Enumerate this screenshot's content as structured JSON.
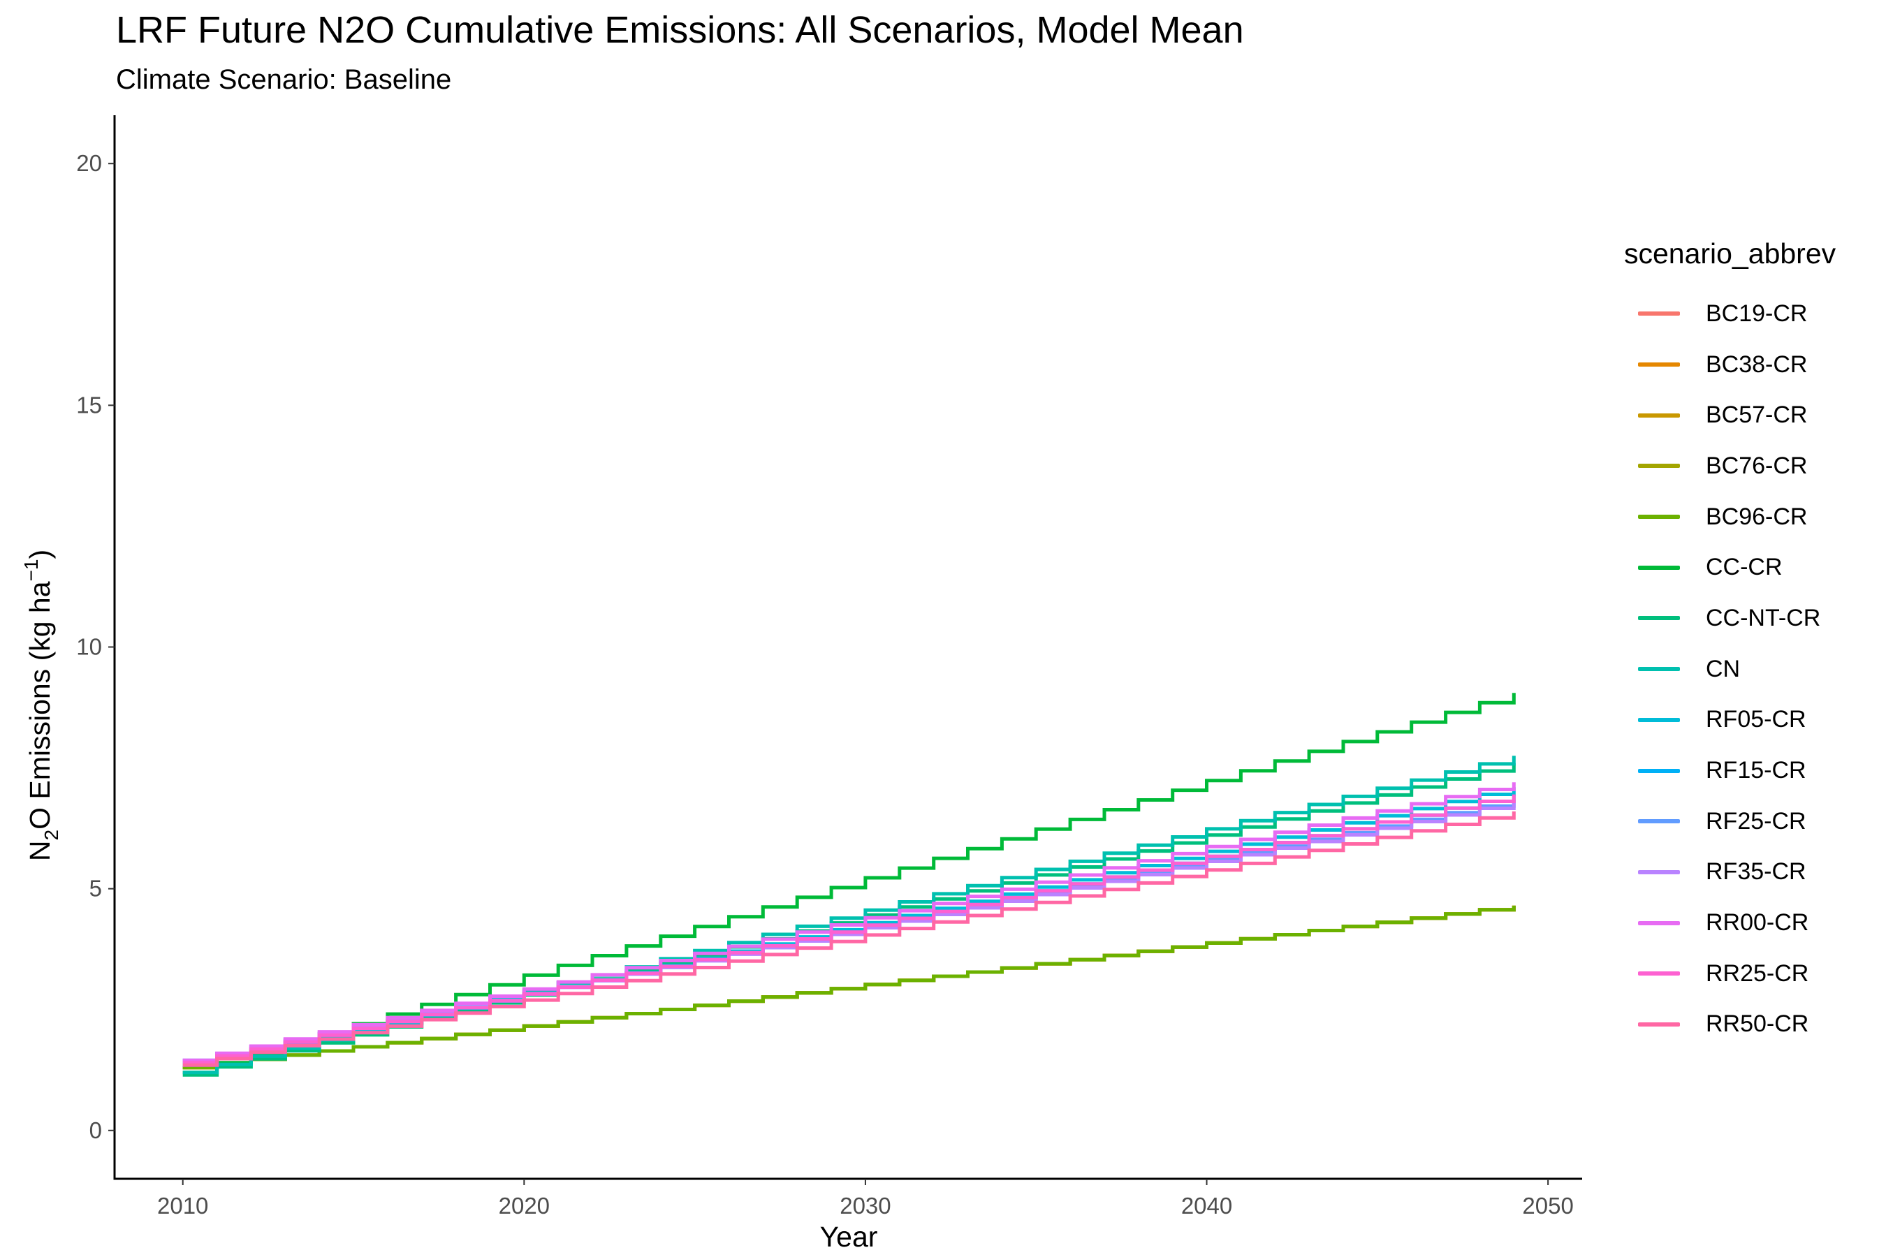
{
  "chart_data": {
    "type": "line",
    "title": "LRF  Future N2O Cumulative Emissions: All Scenarios, Model Mean",
    "subtitle": "Climate Scenario: Baseline",
    "xlabel": "Year",
    "ylabel": {
      "prefix": "N",
      "sub": "2",
      "middle": "O Emissions (kg ha",
      "sup": "−1",
      "suffix": ")"
    },
    "xlim": [
      2008,
      2051
    ],
    "ylim": [
      -1,
      21
    ],
    "x_ticks": [
      2010,
      2020,
      2030,
      2040,
      2050
    ],
    "y_ticks": [
      0,
      5,
      10,
      15,
      20
    ],
    "grid": false,
    "step": true,
    "legend": {
      "title": "scenario_abbrev",
      "position": "right"
    },
    "x": [
      2010,
      2011,
      2012,
      2013,
      2014,
      2015,
      2016,
      2017,
      2018,
      2019,
      2020,
      2021,
      2022,
      2023,
      2024,
      2025,
      2026,
      2027,
      2028,
      2029,
      2030,
      2031,
      2032,
      2033,
      2034,
      2035,
      2036,
      2037,
      2038,
      2039,
      2040,
      2041,
      2042,
      2043,
      2044,
      2045,
      2046,
      2047,
      2048,
      2049
    ],
    "series": [
      {
        "name": "BC19-CR",
        "color": "#F8766D",
        "start": 1.3,
        "end": 4.65
      },
      {
        "name": "BC38-CR",
        "color": "#E58700",
        "start": 1.3,
        "end": 4.65
      },
      {
        "name": "BC57-CR",
        "color": "#C99800",
        "start": 1.3,
        "end": 4.65
      },
      {
        "name": "BC76-CR",
        "color": "#A3A500",
        "start": 1.3,
        "end": 4.65
      },
      {
        "name": "BC96-CR",
        "color": "#6BB100",
        "start": 1.3,
        "end": 4.65
      },
      {
        "name": "CC-CR",
        "color": "#00BA38",
        "start": 1.2,
        "end": 9.05
      },
      {
        "name": "CC-NT-CR",
        "color": "#00BF7D",
        "start": 1.15,
        "end": 7.6
      },
      {
        "name": "CN",
        "color": "#00C0AF",
        "start": 1.2,
        "end": 7.75
      },
      {
        "name": "RF05-CR",
        "color": "#00BCD8",
        "start": 1.35,
        "end": 7.1
      },
      {
        "name": "RF15-CR",
        "color": "#00B0F6",
        "start": 1.4,
        "end": 6.95
      },
      {
        "name": "RF25-CR",
        "color": "#619CFF",
        "start": 1.45,
        "end": 6.85
      },
      {
        "name": "RF35-CR",
        "color": "#B983FF",
        "start": 1.45,
        "end": 6.8
      },
      {
        "name": "RR00-CR",
        "color": "#E76BF3",
        "start": 1.45,
        "end": 7.2
      },
      {
        "name": "RR25-CR",
        "color": "#FD61D1",
        "start": 1.4,
        "end": 6.95
      },
      {
        "name": "RR50-CR",
        "color": "#FF67A4",
        "start": 1.35,
        "end": 6.6
      }
    ]
  }
}
